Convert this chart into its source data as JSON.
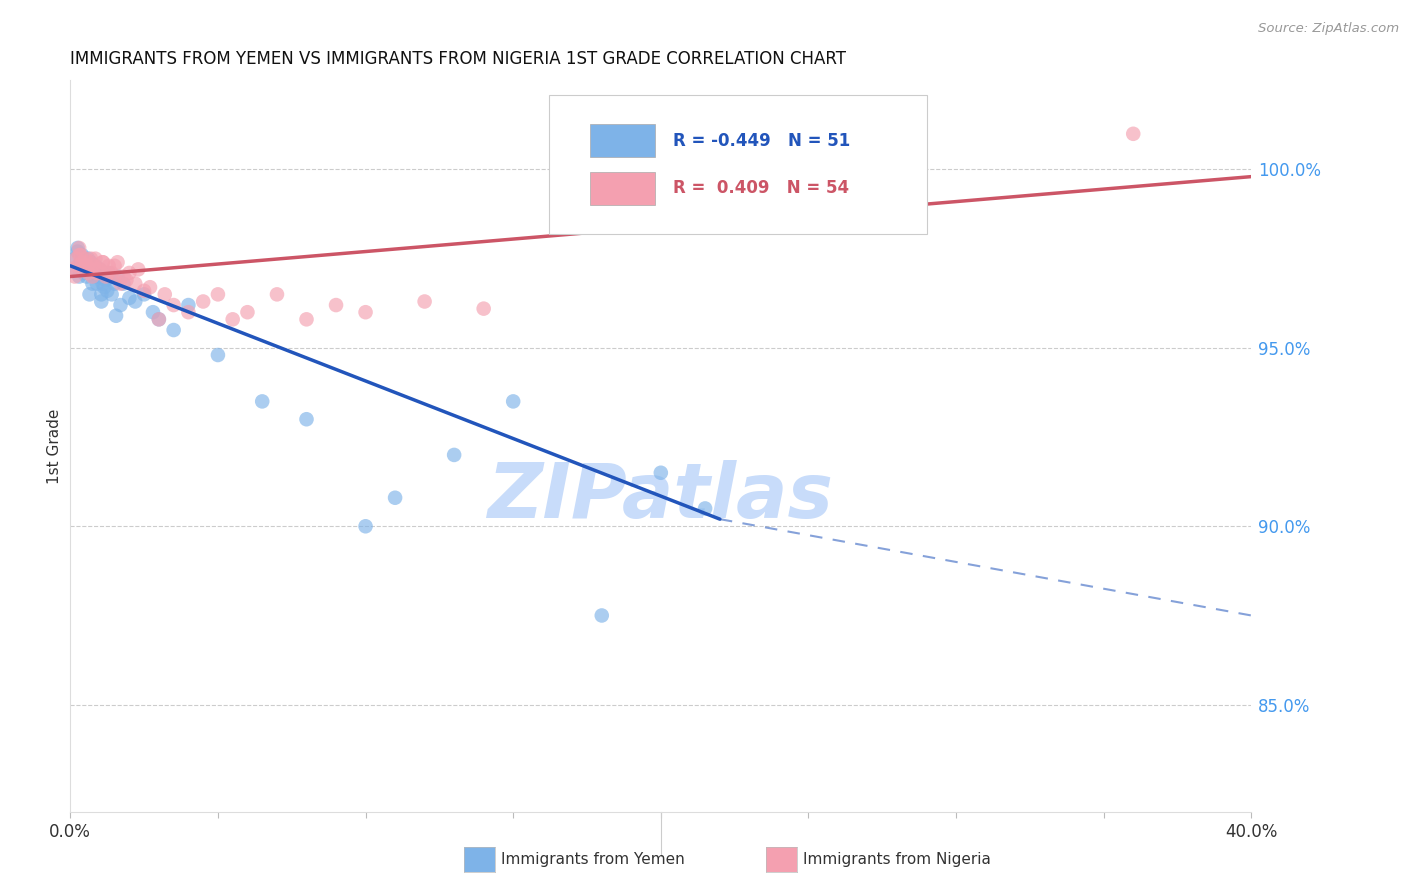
{
  "title": "IMMIGRANTS FROM YEMEN VS IMMIGRANTS FROM NIGERIA 1ST GRADE CORRELATION CHART",
  "source": "Source: ZipAtlas.com",
  "ylabel": "1st Grade",
  "xmin": 0.0,
  "xmax": 40.0,
  "ymin": 82.0,
  "ymax": 102.5,
  "yticks": [
    85.0,
    90.0,
    95.0,
    100.0
  ],
  "ytick_labels": [
    "85.0%",
    "90.0%",
    "95.0%",
    "100.0%"
  ],
  "legend_blue_label": "Immigrants from Yemen",
  "legend_pink_label": "Immigrants from Nigeria",
  "R_blue": -0.449,
  "N_blue": 51,
  "R_pink": 0.409,
  "N_pink": 54,
  "blue_color": "#7EB3E8",
  "pink_color": "#F4A0B0",
  "blue_line_color": "#2255BB",
  "pink_line_color": "#CC5566",
  "watermark": "ZIPatlas",
  "watermark_color": "#C8DCFA",
  "blue_trend_x0": 0.0,
  "blue_trend_y0": 97.3,
  "blue_trend_x1": 22.0,
  "blue_trend_y1": 90.2,
  "blue_dash_x0": 22.0,
  "blue_dash_y0": 90.2,
  "blue_dash_x1": 40.0,
  "blue_dash_y1": 87.5,
  "pink_trend_x0": 0.0,
  "pink_trend_y0": 97.0,
  "pink_trend_x1": 40.0,
  "pink_trend_y1": 99.8,
  "blue_scatter_x": [
    0.15,
    0.2,
    0.25,
    0.3,
    0.35,
    0.4,
    0.45,
    0.5,
    0.55,
    0.6,
    0.65,
    0.7,
    0.75,
    0.8,
    0.85,
    0.9,
    0.95,
    1.0,
    1.05,
    1.1,
    1.15,
    1.2,
    1.3,
    1.4,
    1.5,
    1.6,
    1.7,
    1.8,
    2.0,
    2.2,
    2.5,
    2.8,
    3.0,
    3.5,
    4.0,
    5.0,
    6.5,
    8.0,
    10.0,
    11.0,
    13.0,
    15.0,
    18.0,
    20.0,
    21.5,
    0.25,
    0.45,
    0.65,
    1.05,
    1.25,
    1.55
  ],
  "blue_scatter_y": [
    97.5,
    97.2,
    97.8,
    97.0,
    97.4,
    97.6,
    97.1,
    97.3,
    97.0,
    97.5,
    97.2,
    97.4,
    96.8,
    97.0,
    97.3,
    96.8,
    97.0,
    97.2,
    96.5,
    96.8,
    96.7,
    96.9,
    97.1,
    96.5,
    96.8,
    97.0,
    96.2,
    96.8,
    96.4,
    96.3,
    96.5,
    96.0,
    95.8,
    95.5,
    96.2,
    94.8,
    93.5,
    93.0,
    90.0,
    90.8,
    92.0,
    93.5,
    87.5,
    91.5,
    90.5,
    97.7,
    97.2,
    96.5,
    96.3,
    96.6,
    95.9
  ],
  "pink_scatter_x": [
    0.1,
    0.15,
    0.2,
    0.25,
    0.3,
    0.35,
    0.4,
    0.45,
    0.5,
    0.55,
    0.6,
    0.65,
    0.7,
    0.75,
    0.8,
    0.85,
    0.9,
    1.0,
    1.1,
    1.2,
    1.3,
    1.4,
    1.5,
    1.6,
    1.7,
    1.8,
    2.0,
    2.2,
    2.5,
    3.0,
    3.5,
    4.0,
    4.5,
    5.0,
    5.5,
    6.0,
    7.0,
    8.0,
    9.0,
    10.0,
    12.0,
    14.0,
    0.3,
    0.5,
    0.7,
    0.9,
    1.1,
    1.3,
    1.5,
    1.9,
    2.3,
    2.7,
    36.0,
    3.2
  ],
  "pink_scatter_y": [
    97.2,
    97.0,
    97.5,
    97.3,
    97.8,
    97.6,
    97.4,
    97.2,
    97.5,
    97.3,
    97.1,
    97.4,
    97.2,
    97.0,
    97.3,
    97.5,
    97.1,
    97.2,
    97.4,
    97.0,
    97.3,
    97.1,
    97.0,
    97.4,
    96.8,
    97.0,
    97.1,
    96.8,
    96.6,
    95.8,
    96.2,
    96.0,
    96.3,
    96.5,
    95.8,
    96.0,
    96.5,
    95.8,
    96.2,
    96.0,
    96.3,
    96.1,
    97.6,
    97.3,
    97.5,
    97.2,
    97.4,
    97.1,
    97.3,
    96.9,
    97.2,
    96.7,
    101.0,
    96.5
  ]
}
